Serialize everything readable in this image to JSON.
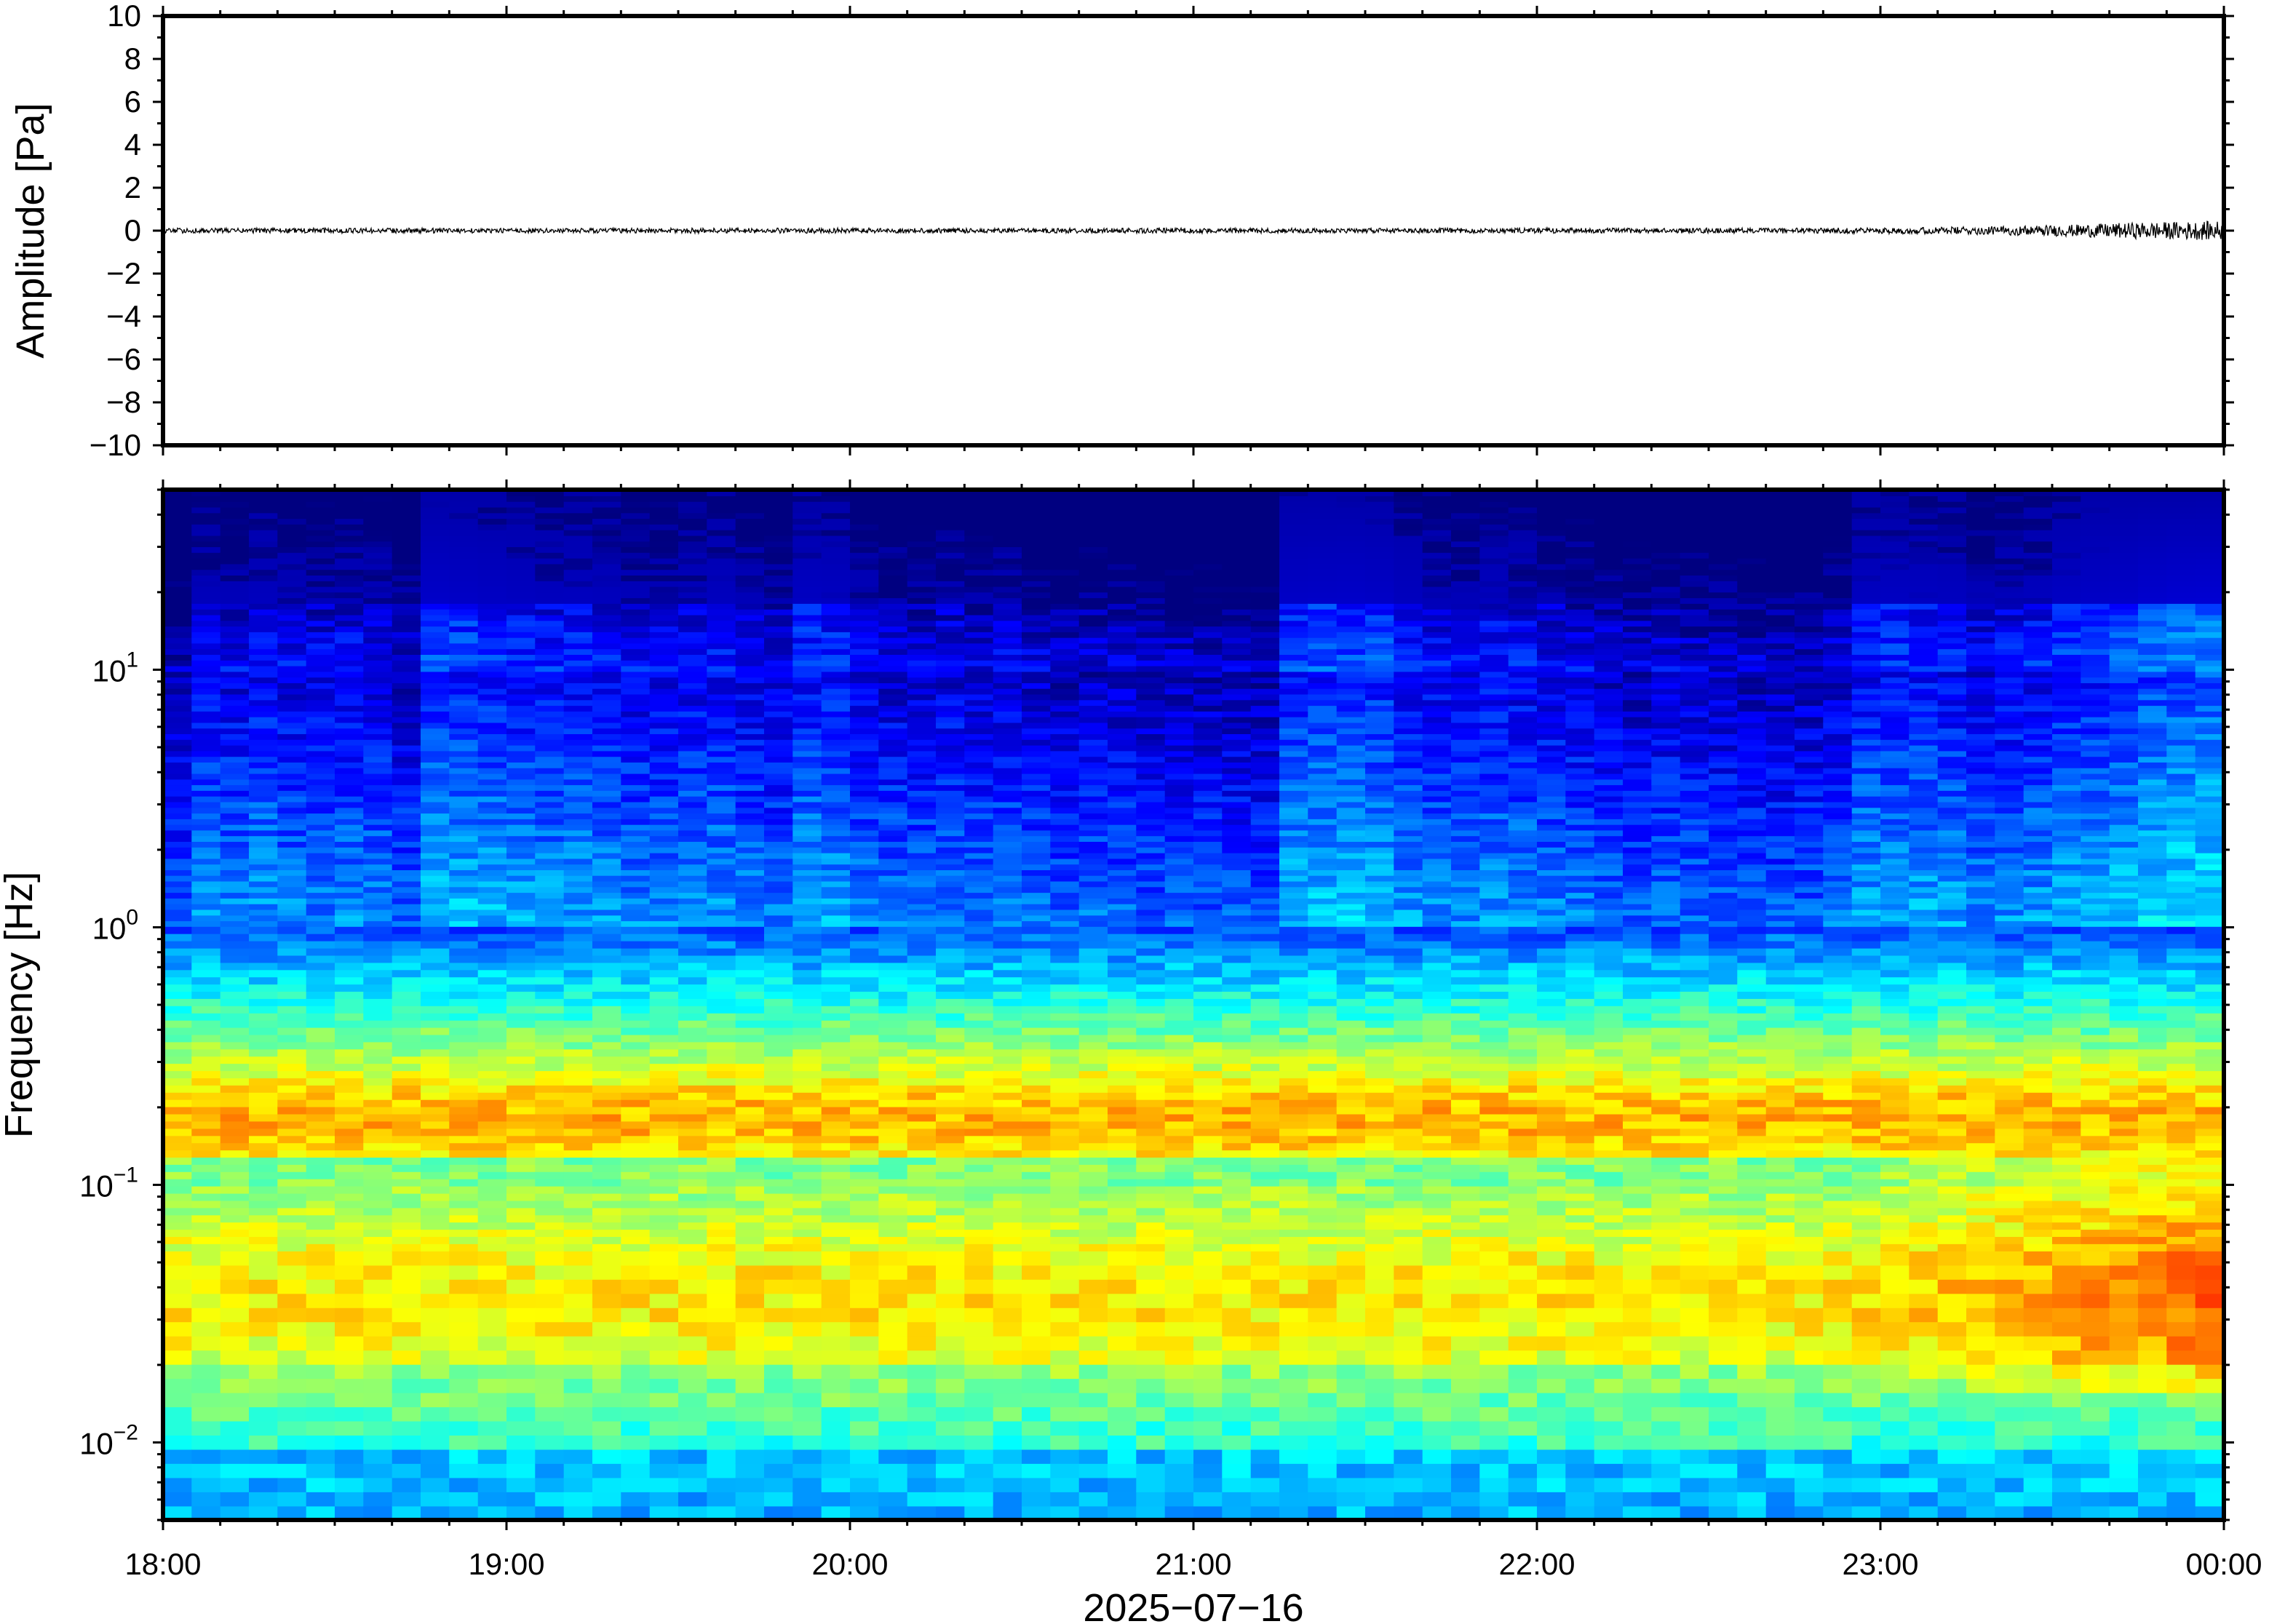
{
  "chart_data": [
    {
      "type": "line",
      "panel": "waveform",
      "ylabel": "Amplitude [Pa]",
      "xlabel": "",
      "ylim": [
        -10,
        10
      ],
      "yticks": [
        10,
        8,
        6,
        4,
        2,
        0,
        -2,
        -4,
        -6,
        -8,
        -10
      ],
      "ytick_labels": [
        "10",
        "8",
        "6",
        "4",
        "2",
        "0",
        "−2",
        "−4",
        "−6",
        "−8",
        "−10"
      ],
      "x_range": [
        "18:00",
        "00:00"
      ],
      "series": [
        {
          "color": "#000000",
          "x_hours": [
            0,
            0.5,
            1,
            1.5,
            2,
            2.5,
            3,
            3.5,
            4,
            4.5,
            5,
            5.25,
            5.5,
            5.75,
            6
          ],
          "envelope_pa": [
            0.12,
            0.12,
            0.11,
            0.12,
            0.12,
            0.11,
            0.12,
            0.11,
            0.12,
            0.12,
            0.14,
            0.18,
            0.25,
            0.38,
            0.45
          ]
        }
      ]
    },
    {
      "type": "heatmap",
      "panel": "spectrogram",
      "ylabel": "Frequency [Hz]",
      "xlabel": "2025−07−16",
      "y_scale": "log",
      "ylim": [
        0.005,
        50
      ],
      "yticks": [
        0.01,
        0.1,
        1,
        10
      ],
      "ytick_labels": [
        {
          "base": "10",
          "exp": "−2"
        },
        {
          "base": "10",
          "exp": "−1"
        },
        {
          "base": "10",
          "exp": "0"
        },
        {
          "base": "10",
          "exp": "1"
        }
      ],
      "xticks": [
        "18:00",
        "19:00",
        "20:00",
        "21:00",
        "22:00",
        "23:00",
        "00:00"
      ],
      "colormap": "jet",
      "time_bins": 72,
      "activity": [
        0.05,
        0.35,
        0.3,
        0.4,
        0.3,
        0.28,
        0.32,
        0.3,
        0.15,
        0.6,
        0.55,
        0.5,
        0.45,
        0.4,
        0.42,
        0.38,
        0.32,
        0.3,
        0.35,
        0.4,
        0.3,
        0.22,
        0.48,
        0.45,
        0.28,
        0.25,
        0.22,
        0.28,
        0.22,
        0.25,
        0.2,
        0.15,
        0.18,
        0.15,
        0.1,
        0.12,
        0.1,
        0.08,
        0.05,
        0.55,
        0.58,
        0.6,
        0.55,
        0.4,
        0.35,
        0.3,
        0.4,
        0.35,
        0.28,
        0.25,
        0.2,
        0.15,
        0.2,
        0.18,
        0.15,
        0.12,
        0.1,
        0.12,
        0.2,
        0.45,
        0.48,
        0.46,
        0.42,
        0.3,
        0.35,
        0.4,
        0.5,
        0.55,
        0.6,
        0.7,
        0.75,
        0.78
      ]
    }
  ]
}
